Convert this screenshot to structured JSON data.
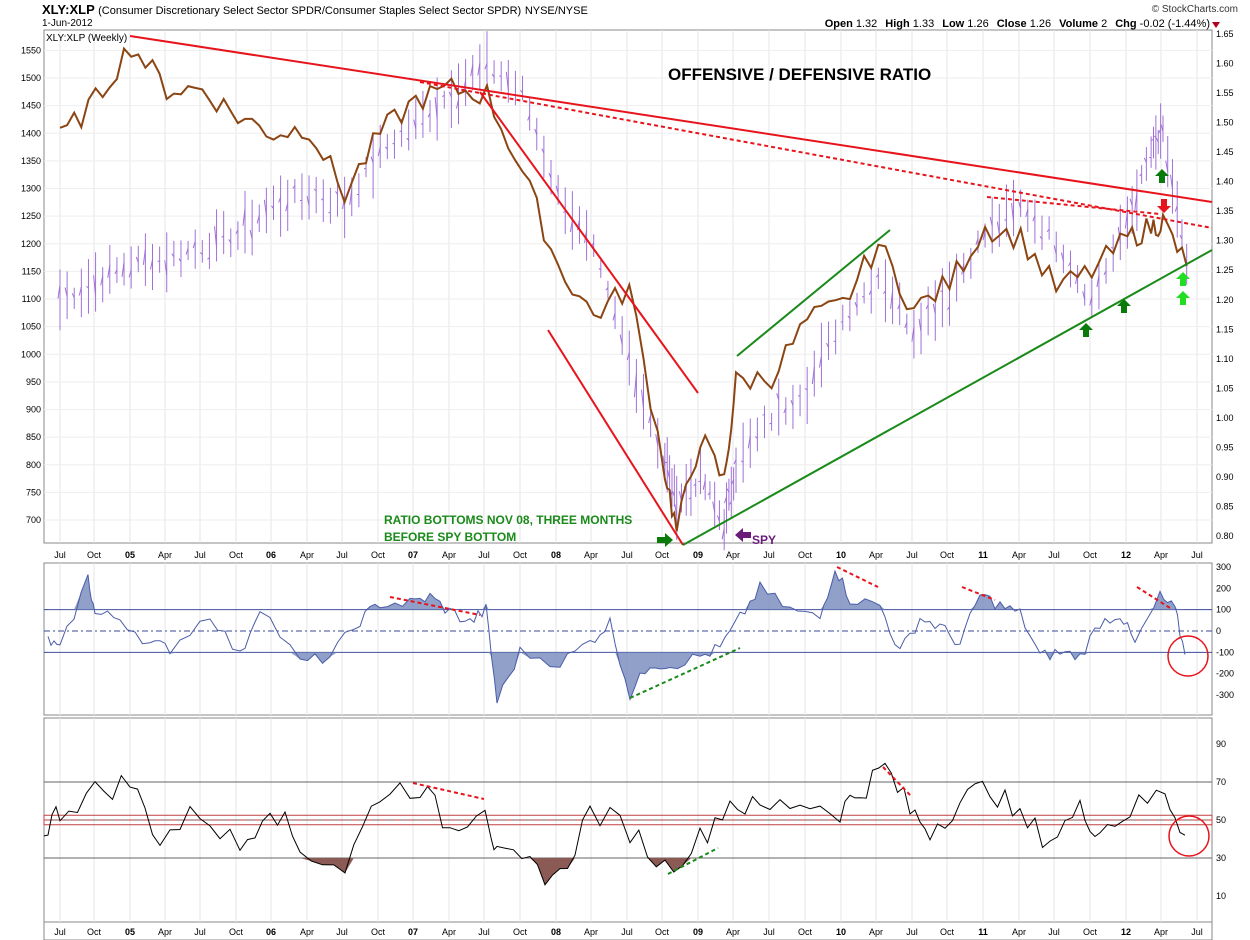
{
  "header": {
    "symbol": "XLY:XLP",
    "description": "(Consumer Discretionary Select Sector SPDR/Consumer Staples Select Sector SPDR)",
    "exchange": "NYSE/NYSE",
    "date": "1-Jun-2012",
    "brand": "© StockCharts.com",
    "quote": [
      {
        "label": "Open",
        "value": "1.32"
      },
      {
        "label": "High",
        "value": "1.33"
      },
      {
        "label": "Low",
        "value": "1.26"
      },
      {
        "label": "Close",
        "value": "1.26"
      },
      {
        "label": "Volume",
        "value": "2"
      },
      {
        "label": "Chg",
        "value": "-0.02 (-1.44%)"
      }
    ],
    "change_color": "#b00020"
  },
  "annotations": {
    "title": "OFFENSIVE / DEFENSIVE  RATIO",
    "bottom_note_line1": "RATIO BOTTOMS NOV 08, THREE MONTHS",
    "bottom_note_line2": "BEFORE SPY BOTTOM",
    "spy_label": "SPY",
    "legend": "XLY:XLP (Weekly)"
  },
  "colors": {
    "ratio": "#a070d8",
    "spx": "#8b4513",
    "trend_red": "#e8141c",
    "trend_green": "#1a8a1a",
    "cci_line": "#4a5ca8",
    "cci_fill": "#7d8fbf",
    "rsi_line": "#000000",
    "rsi_fill": "#8b5a55",
    "arrow_dark_green": "#0a7a0a",
    "arrow_light_green": "#22dd22",
    "arrow_red": "#e8141c",
    "arrow_purple": "#6a1b7a",
    "note_green": "#1a8a1a"
  },
  "chart_data": [
    {
      "type": "line",
      "panel": "main",
      "title": "OFFENSIVE / DEFENSIVE  RATIO",
      "x_ticks": [
        "Jul",
        "Oct",
        "05",
        "Apr",
        "Jul",
        "Oct",
        "06",
        "Apr",
        "Jul",
        "Oct",
        "07",
        "Apr",
        "Jul",
        "Oct",
        "08",
        "Apr",
        "Jul",
        "Oct",
        "09",
        "Apr",
        "Jul",
        "Oct",
        "10",
        "Apr",
        "Jul",
        "Oct",
        "11",
        "Apr",
        "Jul",
        "Oct",
        "12",
        "Apr",
        "Jul"
      ],
      "y_left_ticks": [
        700,
        750,
        800,
        850,
        900,
        950,
        1000,
        1050,
        1100,
        1150,
        1200,
        1250,
        1300,
        1350,
        1400,
        1450,
        1500,
        1550
      ],
      "y_right_ticks": [
        0.8,
        0.85,
        0.9,
        0.95,
        1.0,
        1.05,
        1.1,
        1.15,
        1.2,
        1.25,
        1.3,
        1.35,
        1.4,
        1.45,
        1.5,
        1.55,
        1.6,
        1.65
      ],
      "series": [
        {
          "name": "XLY:XLP (Weekly)",
          "axis": "right",
          "x": [
            "2004-07",
            "2004-10",
            "2005-01",
            "2005-04",
            "2005-07",
            "2005-10",
            "2006-01",
            "2006-04",
            "2006-07",
            "2006-10",
            "2007-01",
            "2007-04",
            "2007-07",
            "2007-10",
            "2008-01",
            "2008-04",
            "2008-07",
            "2008-10",
            "2008-11",
            "2009-01",
            "2009-03",
            "2009-04",
            "2009-07",
            "2009-10",
            "2010-01",
            "2010-04",
            "2010-07",
            "2010-10",
            "2011-01",
            "2011-04",
            "2011-07",
            "2011-10",
            "2012-01",
            "2012-03",
            "2012-04",
            "2012-06"
          ],
          "values": [
            1.2,
            1.23,
            1.26,
            1.27,
            1.29,
            1.31,
            1.36,
            1.38,
            1.36,
            1.45,
            1.5,
            1.55,
            1.6,
            1.55,
            1.38,
            1.28,
            1.1,
            0.93,
            0.86,
            0.9,
            0.82,
            0.92,
            1.0,
            1.05,
            1.17,
            1.24,
            1.15,
            1.22,
            1.31,
            1.36,
            1.3,
            1.2,
            1.33,
            1.45,
            1.48,
            1.26
          ]
        },
        {
          "axis": "left",
          "x": [
            "2004-07",
            "2004-10",
            "2005-01",
            "2005-04",
            "2005-07",
            "2005-10",
            "2006-01",
            "2006-04",
            "2006-07",
            "2006-10",
            "2007-01",
            "2007-04",
            "2007-07",
            "2007-10",
            "2008-01",
            "2008-04",
            "2008-07",
            "2008-10",
            "2008-11",
            "2009-01",
            "2009-03",
            "2009-04",
            "2009-07",
            "2009-10",
            "2010-01",
            "2010-04",
            "2010-07",
            "2010-10",
            "2011-01",
            "2011-04",
            "2011-07",
            "2011-10",
            "2012-01",
            "2012-03",
            "2012-04",
            "2012-06"
          ],
          "values": [
            1390,
            1460,
            1560,
            1480,
            1480,
            1430,
            1400,
            1410,
            1290,
            1400,
            1460,
            1480,
            1470,
            1330,
            1160,
            1070,
            1120,
            790,
            680,
            850,
            770,
            950,
            960,
            1060,
            1090,
            1200,
            1080,
            1130,
            1230,
            1210,
            1120,
            1150,
            1210,
            1230,
            1240,
            1160
          ]
        }
      ]
    },
    {
      "type": "area",
      "panel": "cci",
      "y_ticks": [
        -300,
        -200,
        -100,
        0,
        100,
        200,
        300
      ],
      "reference_lines": [
        100,
        0,
        -100
      ]
    },
    {
      "type": "area",
      "panel": "rsi",
      "y_ticks": [
        10,
        30,
        50,
        70,
        90
      ],
      "reference_lines": [
        30,
        50,
        70
      ]
    }
  ]
}
